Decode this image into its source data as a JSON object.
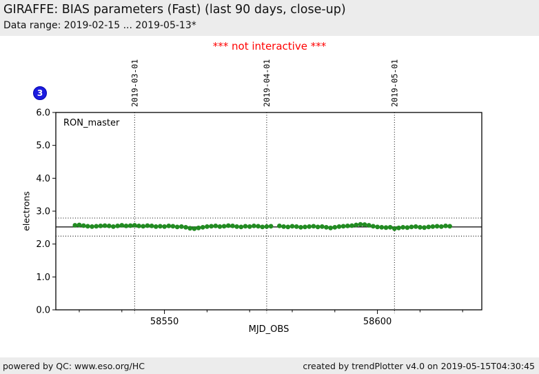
{
  "page": {
    "title": "GIRAFFE: BIAS parameters (Fast) (last 90 days, close-up)",
    "subtitle": "Data range: 2019-02-15 ... 2019-05-13*",
    "notice": "*** not interactive ***",
    "badge": "3",
    "footer_left": "powered by QC: www.eso.org/HC",
    "footer_right": "created by trendPlotter v4.0 on 2019-05-15T04:30:45"
  },
  "colors": {
    "page_band": "#ececec",
    "notice_red": "#ff0000",
    "badge_blue": "#1c1cdf",
    "point_green": "#228B22",
    "axis_black": "#000000"
  },
  "chart_data": {
    "type": "scatter",
    "series_label": "RON_master",
    "xlabel": "MJD_OBS",
    "ylabel": "electrons",
    "xlim": [
      58524.5,
      58624.5
    ],
    "ylim": [
      0,
      6
    ],
    "y_ticks": [
      0.0,
      1.0,
      2.0,
      3.0,
      4.0,
      5.0,
      6.0
    ],
    "y_tick_labels": [
      "0.0",
      "1.0",
      "2.0",
      "3.0",
      "4.0",
      "5.0",
      "6.0"
    ],
    "x_major_ticks": [
      58550,
      58600
    ],
    "x_major_tick_labels": [
      "58550",
      "58600"
    ],
    "x_minor_ticks": [
      58530,
      58540,
      58560,
      58570,
      58580,
      58590,
      58610,
      58620
    ],
    "date_lines": [
      {
        "mjd": 58543,
        "label": "2019-03-01"
      },
      {
        "mjd": 58574,
        "label": "2019-04-01"
      },
      {
        "mjd": 58604,
        "label": "2019-05-01"
      }
    ],
    "reference_lines": {
      "solid_avg": 2.52,
      "dotted_upper": 2.79,
      "dotted_lower": 2.24
    },
    "grid": false,
    "legend_position": "inside-top-left",
    "points": [
      [
        58529,
        2.57
      ],
      [
        58530,
        2.58
      ],
      [
        58531,
        2.56
      ],
      [
        58532,
        2.54
      ],
      [
        58533,
        2.53
      ],
      [
        58534,
        2.54
      ],
      [
        58535,
        2.55
      ],
      [
        58536,
        2.56
      ],
      [
        58537,
        2.55
      ],
      [
        58538,
        2.53
      ],
      [
        58539,
        2.55
      ],
      [
        58540,
        2.57
      ],
      [
        58541,
        2.55
      ],
      [
        58542,
        2.56
      ],
      [
        58543,
        2.57
      ],
      [
        58544,
        2.55
      ],
      [
        58545,
        2.54
      ],
      [
        58546,
        2.56
      ],
      [
        58547,
        2.55
      ],
      [
        58548,
        2.53
      ],
      [
        58549,
        2.54
      ],
      [
        58550,
        2.53
      ],
      [
        58551,
        2.55
      ],
      [
        58552,
        2.54
      ],
      [
        58553,
        2.52
      ],
      [
        58554,
        2.53
      ],
      [
        58555,
        2.51
      ],
      [
        58556,
        2.48
      ],
      [
        58557,
        2.47
      ],
      [
        58558,
        2.49
      ],
      [
        58559,
        2.51
      ],
      [
        58560,
        2.53
      ],
      [
        58561,
        2.54
      ],
      [
        58562,
        2.55
      ],
      [
        58563,
        2.53
      ],
      [
        58564,
        2.54
      ],
      [
        58565,
        2.56
      ],
      [
        58566,
        2.55
      ],
      [
        58567,
        2.53
      ],
      [
        58568,
        2.52
      ],
      [
        58569,
        2.54
      ],
      [
        58570,
        2.53
      ],
      [
        58571,
        2.55
      ],
      [
        58572,
        2.54
      ],
      [
        58573,
        2.52
      ],
      [
        58574,
        2.53
      ],
      [
        58575,
        2.54
      ],
      [
        58577,
        2.55
      ],
      [
        58578,
        2.53
      ],
      [
        58579,
        2.52
      ],
      [
        58580,
        2.54
      ],
      [
        58581,
        2.53
      ],
      [
        58582,
        2.51
      ],
      [
        58583,
        2.52
      ],
      [
        58584,
        2.53
      ],
      [
        58585,
        2.54
      ],
      [
        58586,
        2.52
      ],
      [
        58587,
        2.53
      ],
      [
        58588,
        2.51
      ],
      [
        58589,
        2.49
      ],
      [
        58590,
        2.51
      ],
      [
        58591,
        2.53
      ],
      [
        58592,
        2.54
      ],
      [
        58593,
        2.55
      ],
      [
        58594,
        2.56
      ],
      [
        58595,
        2.58
      ],
      [
        58596,
        2.6
      ],
      [
        58597,
        2.59
      ],
      [
        58598,
        2.57
      ],
      [
        58599,
        2.54
      ],
      [
        58600,
        2.52
      ],
      [
        58601,
        2.51
      ],
      [
        58602,
        2.5
      ],
      [
        58603,
        2.51
      ],
      [
        58604,
        2.47
      ],
      [
        58605,
        2.49
      ],
      [
        58606,
        2.51
      ],
      [
        58607,
        2.5
      ],
      [
        58608,
        2.52
      ],
      [
        58609,
        2.53
      ],
      [
        58610,
        2.51
      ],
      [
        58611,
        2.5
      ],
      [
        58612,
        2.52
      ],
      [
        58613,
        2.53
      ],
      [
        58614,
        2.54
      ],
      [
        58615,
        2.53
      ],
      [
        58616,
        2.55
      ],
      [
        58617,
        2.54
      ]
    ]
  }
}
